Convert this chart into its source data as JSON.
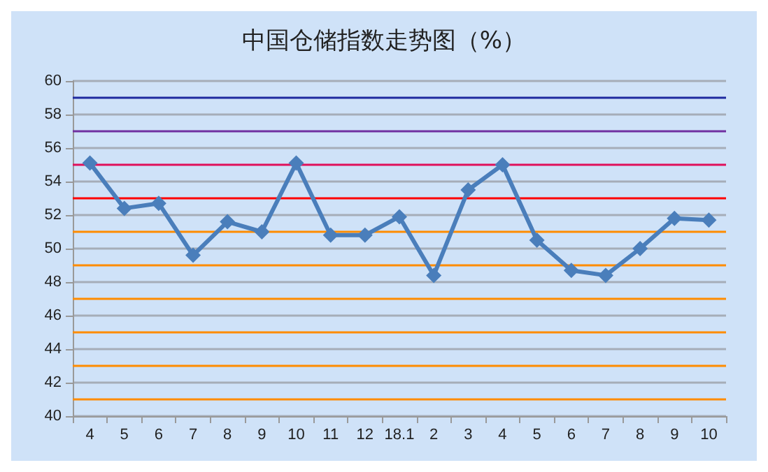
{
  "chart_data": {
    "type": "line",
    "title": "中国仓储指数走势图（%）",
    "categories": [
      "4",
      "5",
      "6",
      "7",
      "8",
      "9",
      "10",
      "11",
      "12",
      "18.1",
      "2",
      "3",
      "4",
      "5",
      "6",
      "7",
      "8",
      "9",
      "10"
    ],
    "series": [
      {
        "color": "#4a7ebb",
        "values": [
          55.1,
          52.4,
          52.7,
          49.6,
          51.6,
          51.0,
          55.1,
          50.8,
          50.8,
          51.9,
          48.4,
          53.5,
          55.0,
          50.5,
          48.7,
          48.4,
          50.0,
          51.8,
          51.7
        ]
      }
    ],
    "ylim": [
      40,
      60
    ],
    "yticks": [
      40,
      42,
      44,
      46,
      48,
      50,
      52,
      54,
      56,
      58,
      60
    ],
    "grid": "y",
    "marker": "diamond",
    "line_style": "solid",
    "ref_lines": [
      {
        "axis": "y",
        "value": 41,
        "color": "#ff8c00"
      },
      {
        "axis": "y",
        "value": 43,
        "color": "#ff8c00"
      },
      {
        "axis": "y",
        "value": 45,
        "color": "#ff8c00"
      },
      {
        "axis": "y",
        "value": 47,
        "color": "#ff8c00"
      },
      {
        "axis": "y",
        "value": 49,
        "color": "#ff8c00"
      },
      {
        "axis": "y",
        "value": 51,
        "color": "#ff8c00"
      },
      {
        "axis": "y",
        "value": 53,
        "color": "#ff0000"
      },
      {
        "axis": "y",
        "value": 55,
        "color": "#e0105a"
      },
      {
        "axis": "y",
        "value": 57,
        "color": "#7030a0"
      },
      {
        "axis": "y",
        "value": 59,
        "color": "#1f2a9f"
      }
    ]
  }
}
